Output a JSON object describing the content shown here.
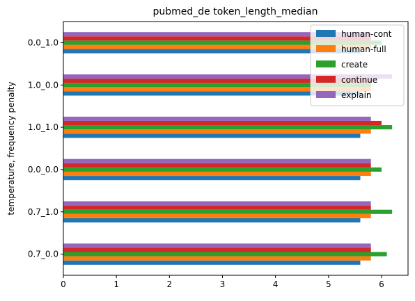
{
  "chart_data": {
    "type": "bar",
    "orientation": "horizontal",
    "title": "pubmed_de token_length_median",
    "xlabel": "",
    "ylabel": "temperature, frequency penalty",
    "categories": [
      "0.7_0.0",
      "0.7_1.0",
      "0.0_0.0",
      "1.0_1.0",
      "1.0_0.0",
      "0.0_1.0"
    ],
    "xlim": [
      0,
      6.5
    ],
    "xticks": [
      0,
      1,
      2,
      3,
      4,
      5,
      6
    ],
    "grid": false,
    "legend_position": "top-right",
    "series": [
      {
        "name": "human-cont",
        "color": "#1f77b4",
        "values": [
          5.6,
          5.6,
          5.6,
          5.6,
          5.6,
          5.6
        ]
      },
      {
        "name": "human-full",
        "color": "#ff7f0e",
        "values": [
          5.8,
          5.8,
          5.8,
          5.8,
          5.8,
          5.8
        ]
      },
      {
        "name": "create",
        "color": "#2ca02c",
        "values": [
          6.1,
          6.2,
          6.0,
          6.2,
          5.8,
          6.0
        ]
      },
      {
        "name": "continue",
        "color": "#d62728",
        "values": [
          5.8,
          5.8,
          5.8,
          6.0,
          5.8,
          5.8
        ]
      },
      {
        "name": "explain",
        "color": "#9467bd",
        "values": [
          5.8,
          5.8,
          5.8,
          5.8,
          6.2,
          5.8
        ]
      }
    ]
  }
}
